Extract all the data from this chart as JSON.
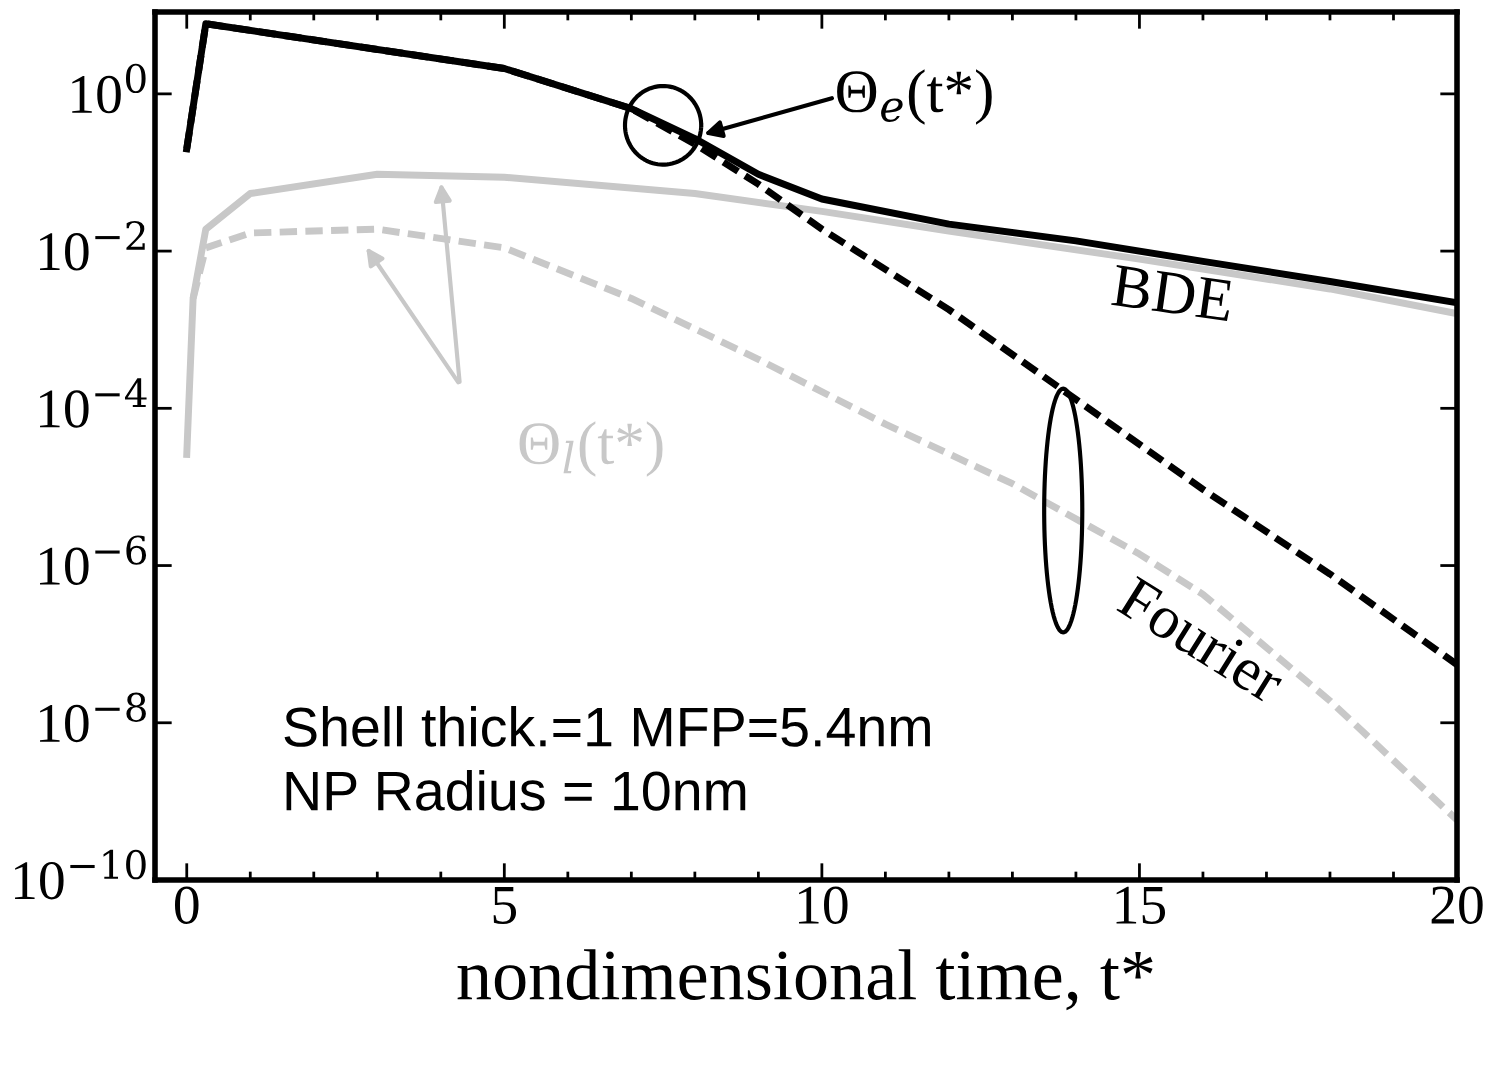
{
  "chart_data": {
    "type": "line",
    "xlabel": "nondimensional time, t*",
    "log": "y",
    "grid": false,
    "marker": "none",
    "xlim": [
      -0.5,
      20
    ],
    "xticks": [
      0,
      5,
      10,
      15,
      20
    ],
    "ylim": [
      1e-10,
      11
    ],
    "yticks": [
      {
        "value": 1e-10,
        "label": "10$^{−10}$"
      },
      {
        "value": 1e-08,
        "label": "10$^{−8}$"
      },
      {
        "value": 1e-06,
        "label": "10$^{−6}$"
      },
      {
        "value": 0.0001,
        "label": "10$^{−4}$"
      },
      {
        "value": 0.01,
        "label": "10$^{−2}$"
      },
      {
        "value": 1,
        "label": "10$^{0}$"
      }
    ],
    "series": [
      {
        "color": "#c8c8c8",
        "line_style": "solid",
        "x": [
          0,
          0.1,
          0.3,
          1,
          3,
          5,
          8,
          10,
          12,
          15,
          18,
          20
        ],
        "values": [
          2.6e-05,
          0.0025,
          0.019,
          0.054,
          0.095,
          0.087,
          0.054,
          0.032,
          0.018,
          0.0079,
          0.0033,
          0.0016
        ]
      },
      {
        "color": "#c8c8c8",
        "line_style": "dashed",
        "x": [
          0.1,
          0.3,
          1,
          3,
          5,
          7,
          9,
          11,
          13,
          15,
          16,
          18,
          20
        ],
        "values": [
          0.0025,
          0.011,
          0.017,
          0.019,
          0.011,
          0.0025,
          0.00042,
          6.3e-05,
          1.1e-05,
          1.4e-06,
          4.3e-07,
          1.9e-08,
          5.8e-10
        ]
      },
      {
        "color": "#000000",
        "line_style": "dashed",
        "x": [
          0,
          0.3,
          5,
          7,
          8,
          9,
          10,
          12,
          14,
          16,
          18,
          20
        ],
        "values": [
          0.2,
          7.8,
          2.1,
          0.65,
          0.23,
          0.071,
          0.019,
          0.0018,
          0.00013,
          9.3e-06,
          7.8e-07,
          5.5e-08
        ]
      },
      {
        "color": "#000000",
        "line_style": "solid",
        "x": [
          0,
          0.3,
          5,
          7,
          8,
          9,
          10,
          12,
          14,
          16,
          18,
          20
        ],
        "values": [
          0.2,
          7.8,
          2.1,
          0.65,
          0.27,
          0.095,
          0.046,
          0.022,
          0.0135,
          0.0074,
          0.0041,
          0.0022
        ]
      }
    ],
    "annotations": [
      "Θ$_{e}$(t*)",
      "BDE",
      "Θ$_{l}$(t*)",
      "Fourier",
      "Shell thick.=1 MFP=5.4nm\nNP Radius = 10nm"
    ]
  }
}
